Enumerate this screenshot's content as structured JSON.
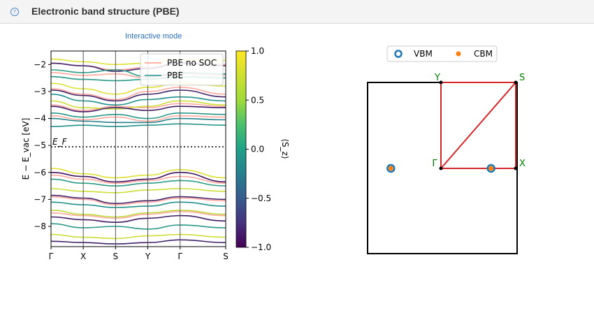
{
  "header": {
    "title": "Electronic band structure (PBE)",
    "help_icon_glyph": "?"
  },
  "controls": {
    "interactive_label": "Interactive mode"
  },
  "colors": {
    "soc_low": "#440154",
    "soc_mid": "#21918c",
    "soc_high": "#fde725",
    "nosoc": "#ff9e93",
    "path": "#d62728",
    "vbm": "#1f77b4",
    "cbm": "#ff7f0e",
    "kpoint_label": "#008000"
  },
  "chart_data": [
    {
      "type": "line",
      "title": "",
      "ylabel": "E − E_vac [eV]",
      "ylim": [
        -8.75,
        -1.5
      ],
      "yticks": [
        -8,
        -7,
        -6,
        -5,
        -4,
        -3,
        -2
      ],
      "ytick_labels": [
        "−8",
        "−7",
        "−6",
        "−5",
        "−4",
        "−3",
        "−2"
      ],
      "kpath": [
        "Γ",
        "X",
        "S",
        "Y",
        "Γ",
        "S"
      ],
      "kpath_x": [
        0,
        0.5,
        1.0,
        1.5,
        2.0,
        2.7071
      ],
      "fermi_level": -5.05,
      "fermi_label": "E_F",
      "legend": {
        "position": "upper-right",
        "entries": [
          "PBE no SOC",
          "PBE"
        ]
      },
      "colorbar": {
        "label": "⟨S_z⟩",
        "range": [
          -1.0,
          1.0
        ],
        "ticks": [
          -1.0,
          -0.5,
          0.0,
          0.5,
          1.0
        ],
        "tick_labels": [
          "−1.0",
          "−0.5",
          "0.0",
          "0.5",
          "1.0"
        ]
      },
      "bands_no_soc": [
        [
          -1.95,
          -2.05,
          -2.2,
          -2.1,
          -1.95,
          -2.0
        ],
        [
          -2.3,
          -2.4,
          -2.35,
          -2.5,
          -2.35,
          -2.4
        ],
        [
          -2.9,
          -3.1,
          -3.3,
          -3.0,
          -2.85,
          -3.1
        ],
        [
          -3.5,
          -3.7,
          -3.55,
          -3.6,
          -3.45,
          -3.55
        ],
        [
          -3.9,
          -4.05,
          -3.95,
          -4.1,
          -3.9,
          -3.95
        ],
        [
          -6.1,
          -6.25,
          -6.4,
          -6.3,
          -6.15,
          -6.4
        ],
        [
          -6.9,
          -7.0,
          -7.2,
          -7.1,
          -6.95,
          -7.05
        ],
        [
          -7.5,
          -7.6,
          -7.7,
          -7.55,
          -7.45,
          -7.6
        ]
      ],
      "bands": [
        {
          "values": [
            -1.8,
            -1.9,
            -2.0,
            -1.95,
            -1.8,
            -1.85
          ],
          "sz": 0.9
        },
        {
          "values": [
            -1.95,
            -2.05,
            -2.25,
            -2.15,
            -1.95,
            -2.05
          ],
          "sz": -0.8
        },
        {
          "values": [
            -2.2,
            -2.3,
            -2.2,
            -2.45,
            -2.3,
            -2.35
          ],
          "sz": 0.1
        },
        {
          "values": [
            -2.45,
            -2.55,
            -2.6,
            -2.55,
            -2.45,
            -2.5
          ],
          "sz": 0.05
        },
        {
          "values": [
            -2.7,
            -2.9,
            -3.1,
            -2.85,
            -2.7,
            -2.8
          ],
          "sz": 0.9
        },
        {
          "values": [
            -2.95,
            -3.15,
            -3.35,
            -3.1,
            -2.95,
            -3.2
          ],
          "sz": -0.8
        },
        {
          "values": [
            -3.1,
            -3.35,
            -3.5,
            -3.3,
            -3.2,
            -3.35
          ],
          "sz": 0.0
        },
        {
          "values": [
            -3.35,
            -3.6,
            -3.65,
            -3.55,
            -3.35,
            -3.5
          ],
          "sz": 0.85
        },
        {
          "values": [
            -3.55,
            -3.75,
            -3.6,
            -3.7,
            -3.55,
            -3.6
          ],
          "sz": -0.85
        },
        {
          "values": [
            -3.8,
            -3.95,
            -3.85,
            -4.0,
            -3.8,
            -3.85
          ],
          "sz": 0.05
        },
        {
          "values": [
            -4.0,
            -4.1,
            -4.15,
            -4.15,
            -4.0,
            -4.05
          ],
          "sz": -0.1
        },
        {
          "values": [
            -4.3,
            -4.25,
            -4.3,
            -4.25,
            -4.2,
            -4.25
          ],
          "sz": 0.0
        },
        {
          "values": [
            -5.85,
            -6.05,
            -6.2,
            -6.1,
            -5.9,
            -6.2
          ],
          "sz": 0.9
        },
        {
          "values": [
            -6.0,
            -6.15,
            -6.35,
            -6.25,
            -6.0,
            -6.35
          ],
          "sz": -0.9
        },
        {
          "values": [
            -6.25,
            -6.4,
            -6.5,
            -6.4,
            -6.3,
            -6.5
          ],
          "sz": 0.1
        },
        {
          "values": [
            -6.6,
            -6.7,
            -6.75,
            -6.65,
            -6.6,
            -6.7
          ],
          "sz": 0.85
        },
        {
          "values": [
            -6.85,
            -6.95,
            -7.15,
            -7.05,
            -6.9,
            -7.0
          ],
          "sz": -0.8
        },
        {
          "values": [
            -7.1,
            -7.2,
            -7.3,
            -7.25,
            -7.1,
            -7.25
          ],
          "sz": 0.0
        },
        {
          "values": [
            -7.4,
            -7.55,
            -7.65,
            -7.5,
            -7.4,
            -7.55
          ],
          "sz": 0.8
        },
        {
          "values": [
            -7.65,
            -7.75,
            -7.85,
            -7.7,
            -7.6,
            -7.8
          ],
          "sz": -0.85
        },
        {
          "values": [
            -7.9,
            -8.05,
            -8.0,
            -8.1,
            -7.95,
            -8.05
          ],
          "sz": 0.05
        },
        {
          "values": [
            -8.3,
            -8.4,
            -8.45,
            -8.35,
            -8.3,
            -8.4
          ],
          "sz": 0.85
        },
        {
          "values": [
            -8.55,
            -8.6,
            -8.65,
            -8.6,
            -8.5,
            -8.6
          ],
          "sz": -0.8
        }
      ]
    },
    {
      "type": "scatter",
      "title": "",
      "legend": {
        "position": "upper-center",
        "entries": [
          "VBM",
          "CBM"
        ]
      },
      "bz_points": [
        {
          "label": "Γ",
          "x": 0,
          "y": 0
        },
        {
          "label": "X",
          "x": 1,
          "y": 0
        },
        {
          "label": "S",
          "x": 1,
          "y": 1
        },
        {
          "label": "Y",
          "x": 0,
          "y": 1
        }
      ],
      "path": [
        "Γ",
        "X",
        "S",
        "Y",
        "Γ",
        "S"
      ],
      "vbm": [
        {
          "x": -0.67,
          "y": 0
        },
        {
          "x": 0.67,
          "y": 0
        }
      ],
      "cbm": [
        {
          "x": -0.67,
          "y": 0
        },
        {
          "x": 0.67,
          "y": 0
        }
      ]
    }
  ]
}
